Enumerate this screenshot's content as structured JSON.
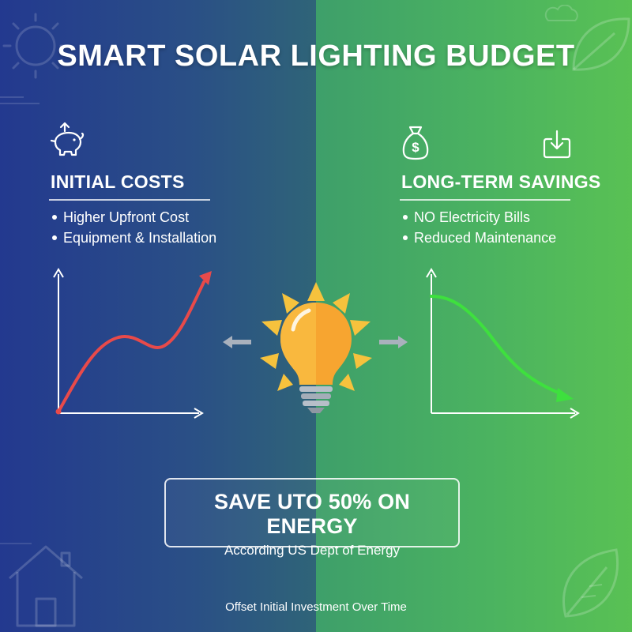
{
  "title": "SMART SOLAR LIGHTING BUDGET",
  "left_section": {
    "heading": "INITIAL COSTS",
    "bullets": [
      "Higher Upfront Cost",
      "Equipment & Installation"
    ],
    "icon": "piggy-bank-icon"
  },
  "right_section": {
    "heading": "LONG-TERM SAVINGS",
    "bullets": [
      "NO Electricity Bills",
      "Reduced Maintenance"
    ],
    "icons": [
      "money-bag-icon",
      "download-icon"
    ]
  },
  "center_icon": "lightbulb-sun-icon",
  "savings_box": {
    "headline": "SAVE UTO 50% ON ENERGY",
    "source": "According US Dept of Energy"
  },
  "footer": "Offset Initial Investment Over Time",
  "colors": {
    "left_bg": "#23398f",
    "right_bg": "#59c154",
    "cost_curve": "#e84a4a",
    "savings_curve": "#3ee03e",
    "bulb": "#f7a530",
    "sun_rays": "#f6c23d"
  }
}
